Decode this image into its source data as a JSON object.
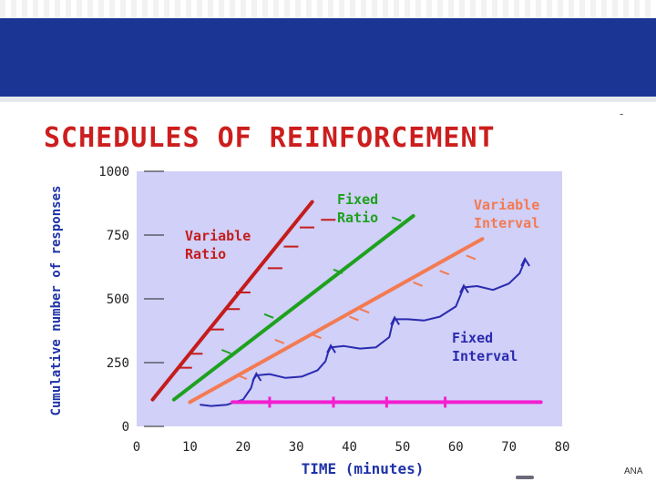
{
  "colors": {
    "header": "#1a3594",
    "title": "#cc1e1e",
    "y_axis_title": "#1f33a8",
    "x_axis_title": "#1f33a8",
    "plot_bg": "#d0d0f8",
    "variable_ratio": "#c41c1c",
    "fixed_ratio": "#1ea11e",
    "variable_interval": "#f47a52",
    "fixed_interval": "#2a2ab0",
    "baseline": "#f21fd0"
  },
  "header": {
    "dash": "-"
  },
  "footer": {
    "logo_text": "ANA"
  },
  "chart_data": {
    "type": "line",
    "title": "SCHEDULES OF REINFORCEMENT",
    "xlabel": "TIME (minutes)",
    "ylabel": "Cumulative number of responses",
    "xlim": [
      0,
      80
    ],
    "ylim": [
      0,
      1000
    ],
    "x_ticks": [
      "0",
      "10",
      "20",
      "30",
      "40",
      "50",
      "60",
      "70",
      "80"
    ],
    "y_ticks": [
      "0",
      "250",
      "500",
      "750",
      "1000"
    ],
    "grid": false,
    "series": [
      {
        "name": "Variable Ratio",
        "label_lines": [
          "Variable",
          "Ratio"
        ],
        "x": [
          3,
          33
        ],
        "y": [
          105,
          880
        ],
        "reinforcements": [
          [
            8,
            230
          ],
          [
            10,
            285
          ],
          [
            14,
            380
          ],
          [
            17,
            460
          ],
          [
            19,
            525
          ],
          [
            25,
            620
          ],
          [
            28,
            705
          ],
          [
            31,
            780
          ],
          [
            35,
            810
          ]
        ]
      },
      {
        "name": "Fixed Ratio",
        "label_lines": [
          "Fixed",
          "Ratio"
        ],
        "x": [
          7,
          52
        ],
        "y": [
          105,
          825
        ],
        "reinforcements": [
          [
            16,
            300
          ],
          [
            24,
            440
          ],
          [
            37,
            615
          ],
          [
            48,
            820
          ]
        ]
      },
      {
        "name": "Variable Interval",
        "label_lines": [
          "Variable",
          "Interval"
        ],
        "x": [
          10,
          65
        ],
        "y": [
          95,
          735
        ],
        "reinforcements": [
          [
            19,
            200
          ],
          [
            26,
            340
          ],
          [
            33,
            360
          ],
          [
            40,
            430
          ],
          [
            42,
            460
          ],
          [
            52,
            565
          ],
          [
            57,
            610
          ],
          [
            62,
            670
          ]
        ]
      },
      {
        "name": "Fixed Interval",
        "label_lines": [
          "Fixed",
          "Interval"
        ],
        "x": [
          12,
          14,
          17,
          20,
          21.5,
          22,
          22.5,
          25,
          28,
          31,
          34,
          35.5,
          36,
          36.5,
          39,
          42,
          45,
          47.5,
          48,
          48.5,
          51,
          54,
          57,
          60,
          61,
          61.5,
          64,
          67,
          70,
          72,
          73
        ],
        "y": [
          85,
          80,
          85,
          105,
          150,
          185,
          200,
          205,
          190,
          195,
          220,
          255,
          290,
          310,
          315,
          305,
          310,
          350,
          395,
          420,
          420,
          415,
          430,
          470,
          520,
          545,
          550,
          535,
          560,
          600,
          650
        ],
        "arrow_at": [
          [
            22.5,
            200
          ],
          [
            36.5,
            310
          ],
          [
            48.5,
            420
          ],
          [
            61.5,
            545
          ],
          [
            73,
            650
          ]
        ]
      },
      {
        "name": "baseline",
        "x": [
          18,
          76
        ],
        "y": [
          95,
          95
        ],
        "reinforcements": [
          [
            25,
            95
          ],
          [
            37,
            95
          ],
          [
            47,
            95
          ],
          [
            58,
            95
          ]
        ]
      }
    ]
  }
}
